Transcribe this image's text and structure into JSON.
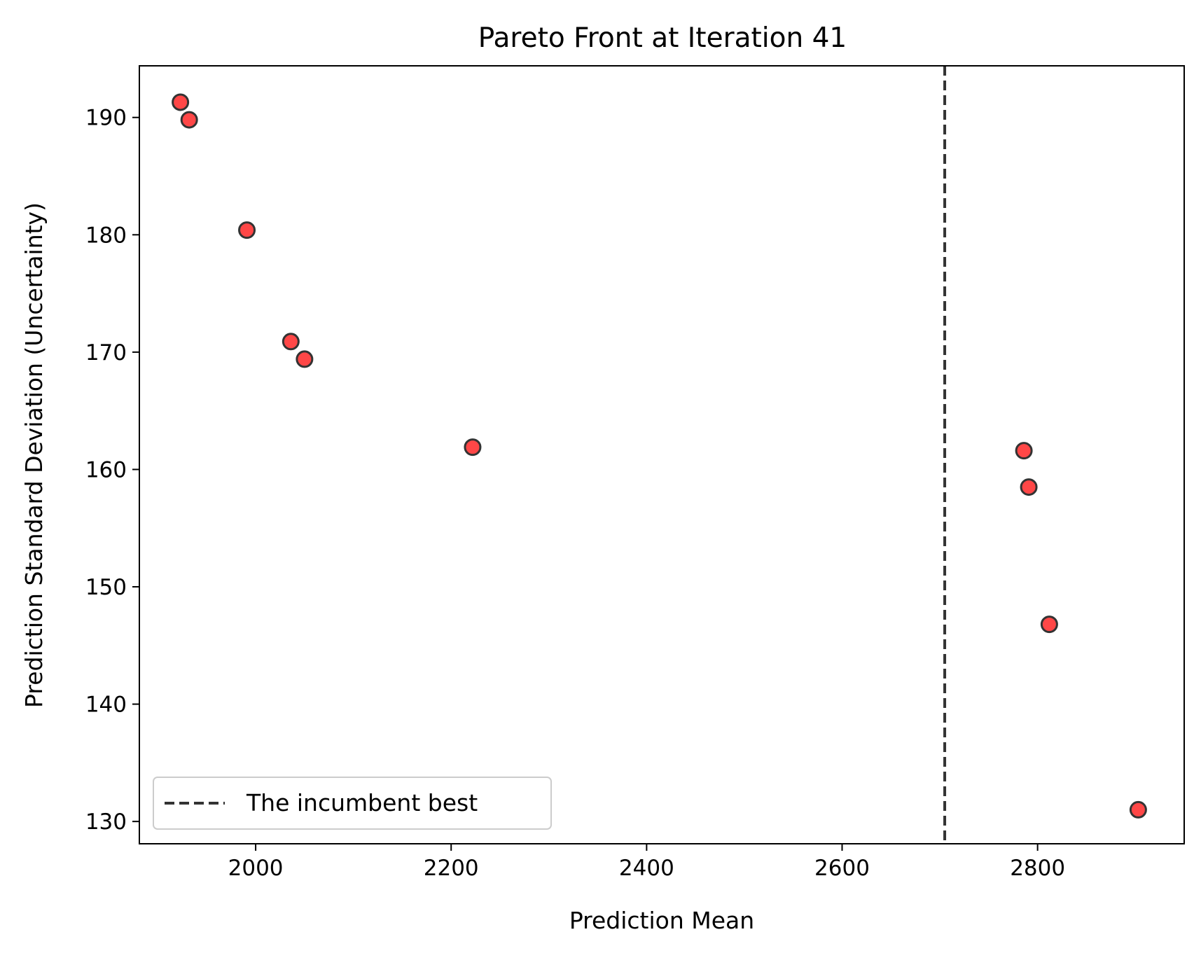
{
  "chart_data": {
    "type": "scatter",
    "title": "Pareto Front at Iteration 41",
    "xlabel": "Prediction Mean",
    "ylabel": "Prediction Standard Deviation (Uncertainty)",
    "xlim": [
      1881,
      2950
    ],
    "ylim": [
      128.1,
      194.4
    ],
    "xticks": [
      2000,
      2200,
      2400,
      2600,
      2800
    ],
    "yticks": [
      130,
      140,
      150,
      160,
      170,
      180,
      190
    ],
    "grid": false,
    "legend_position": "lower-left",
    "series": [
      {
        "points": [
          {
            "x": 1923,
            "y": 191.3
          },
          {
            "x": 1932,
            "y": 189.8
          },
          {
            "x": 1991,
            "y": 180.4
          },
          {
            "x": 2036,
            "y": 170.9
          },
          {
            "x": 2050,
            "y": 169.4
          },
          {
            "x": 2222,
            "y": 161.9
          },
          {
            "x": 2786,
            "y": 161.6
          },
          {
            "x": 2791,
            "y": 158.5
          },
          {
            "x": 2812,
            "y": 146.8
          },
          {
            "x": 2903,
            "y": 131.0
          }
        ],
        "color": "#ff0000",
        "edge_color": "#333333"
      }
    ],
    "reference_line": {
      "orientation": "vertical",
      "x": 2705,
      "label": "The incumbent best",
      "style": "dashed",
      "color": "#333333"
    }
  }
}
